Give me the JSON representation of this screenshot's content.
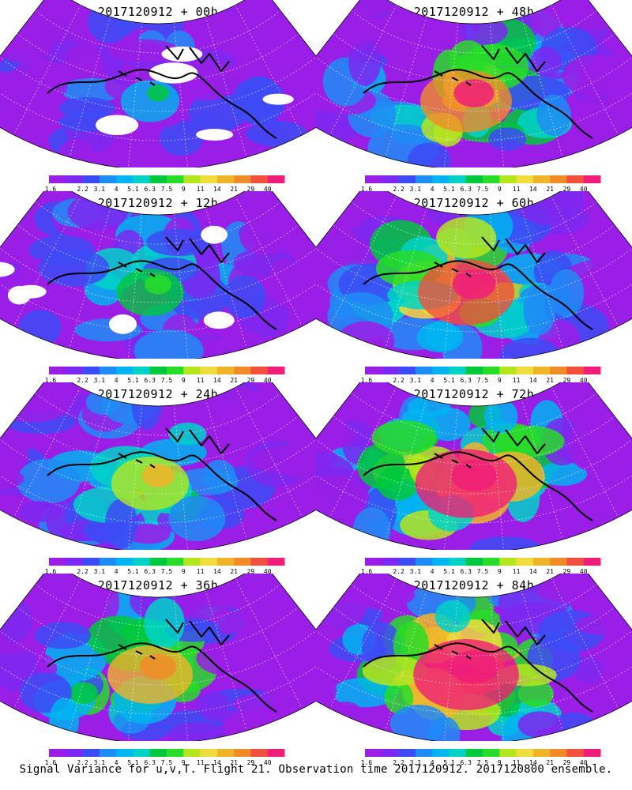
{
  "chart_data": {
    "type": "heatmap",
    "footer": "Signal Variance for u,v,T. Flight 21. Observation time 2017120912. 2017120800 ensemble.",
    "colorbar": {
      "labels": [
        "1.6",
        "2.2",
        "3.1",
        "4",
        "5.1",
        "6.3",
        "7.5",
        "9",
        "11",
        "14",
        "21",
        "29",
        "40"
      ],
      "colors": [
        "#9a1ee6",
        "#7d28f0",
        "#3c4bf5",
        "#1e8cf5",
        "#00b4f0",
        "#00d2c8",
        "#00c83c",
        "#28dc28",
        "#b4e61e",
        "#f0dc3c",
        "#f0b428",
        "#f08c28",
        "#f0503c",
        "#f01e78"
      ]
    },
    "panels": [
      {
        "title": "2017120912 + 00h",
        "intensity": 0.18,
        "column": 0,
        "row": 0
      },
      {
        "title": "2017120912 + 12h",
        "intensity": 0.32,
        "column": 0,
        "row": 1
      },
      {
        "title": "2017120912 + 24h",
        "intensity": 0.48,
        "column": 0,
        "row": 2
      },
      {
        "title": "2017120912 + 36h",
        "intensity": 0.6,
        "column": 0,
        "row": 3
      },
      {
        "title": "2017120912 + 48h",
        "intensity": 0.7,
        "column": 1,
        "row": 0
      },
      {
        "title": "2017120912 + 60h",
        "intensity": 0.78,
        "column": 1,
        "row": 1
      },
      {
        "title": "2017120912 + 72h",
        "intensity": 0.86,
        "column": 1,
        "row": 2
      },
      {
        "title": "2017120912 + 84h",
        "intensity": 0.92,
        "column": 1,
        "row": 3
      }
    ]
  }
}
